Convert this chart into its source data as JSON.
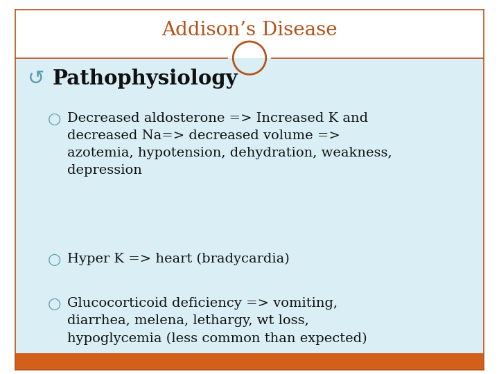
{
  "title": "Addison’s Disease",
  "title_color": "#B5521B",
  "title_fontsize": 20,
  "bg_color": "#FFFFFF",
  "content_bg_color": "#D9EEF5",
  "border_color": "#B5521B",
  "circle_color": "#B5521B",
  "bottom_bar_color": "#D2601A",
  "bullet1_symbol": "↺",
  "bullet1_text": "Pathophysiology",
  "bullet1_fontsize": 21,
  "bullet1_symbol_color": "#5B9BAA",
  "sub_bullet_symbol": "○",
  "sub_bullet_color": "#5B9BAA",
  "sub_bullet_fontsize": 14,
  "sub1_text": "Decreased aldosterone => Increased K and\ndecreased Na=> decreased volume =>\nazotemia, hypotension, dehydration, weakness,\ndepression",
  "sub2_text": "Hyper K => heart (bradycardia)",
  "sub3_text": "Glucocorticoid deficiency => vomiting,\ndiarrhea, melena, lethargy, wt loss,\nhypoglycemia (less common than expected)",
  "text_color": "#111111",
  "fig_width": 7.2,
  "fig_height": 5.4,
  "dpi": 100
}
